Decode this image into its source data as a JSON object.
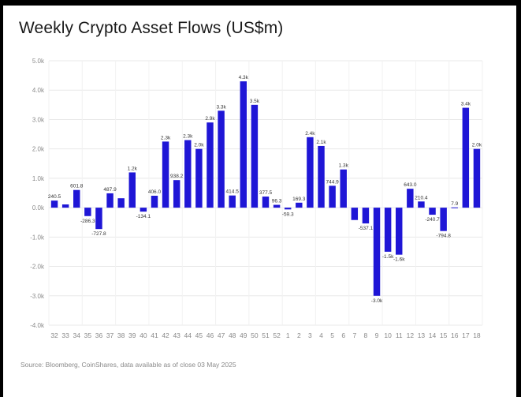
{
  "title": "Weekly Crypto Asset Flows (US$m)",
  "source": "Source: Bloomberg, CoinShares, data available as of close 03 May 2025",
  "colors": {
    "bar": "#1f16d6",
    "grid": "#e8e8e8",
    "tick": "#8a8a8a",
    "label": "#333333"
  },
  "chart_data": {
    "type": "bar",
    "title": "Weekly Crypto Asset Flows (US$m)",
    "xlabel": "",
    "ylabel": "",
    "ylim": [
      -4000,
      5000
    ],
    "yticks": [
      -4000,
      -3000,
      -2000,
      -1000,
      0,
      1000,
      2000,
      3000,
      4000,
      5000
    ],
    "ytick_labels": [
      "-4.0k",
      "-3.0k",
      "-2.0k",
      "-1.0k",
      "0.0k",
      "1.0k",
      "2.0k",
      "3.0k",
      "4.0k",
      "5.0k"
    ],
    "grid": true,
    "legend": "none",
    "categories": [
      "32",
      "33",
      "34",
      "35",
      "36",
      "37",
      "38",
      "39",
      "40",
      "41",
      "42",
      "43",
      "44",
      "45",
      "46",
      "47",
      "48",
      "49",
      "50",
      "51",
      "52",
      "1",
      "2",
      "3",
      "4",
      "5",
      "6",
      "7",
      "8",
      "9",
      "10",
      "11",
      "12",
      "13",
      "14",
      "15",
      "16",
      "17",
      "18"
    ],
    "values": [
      240.5,
      110,
      601.8,
      -286.3,
      -727.8,
      487.9,
      320,
      1200,
      -134.1,
      406,
      2250,
      938.2,
      2300,
      2000,
      2900,
      3300,
      414.5,
      4300,
      3500,
      377.5,
      96.3,
      -59.3,
      169.3,
      2400,
      2100,
      744.9,
      1300,
      -420,
      -537.1,
      -3000,
      -1500,
      -1600,
      643,
      210.4,
      -240.7,
      -794.8,
      7.9,
      3400,
      2000
    ],
    "data_labels": [
      "240.5",
      "",
      "601.8",
      "-286.3",
      "-727.8",
      "487.9",
      "",
      "1.2k",
      "-134.1",
      "406.0",
      "2.3k",
      "938.2",
      "2.3k",
      "2.0k",
      "2.9k",
      "3.3k",
      "414.5",
      "4.3k",
      "3.5k",
      "377.5",
      "96.3",
      "-59.3",
      "169.3",
      "2.4k",
      "2.1k",
      "744.9",
      "1.3k",
      "",
      "-537.1",
      "-3.0k",
      "-1.5k",
      "-1.6k",
      "643.0",
      "210.4",
      "-240.7",
      "-794.8",
      "7.9",
      "3.4k",
      "2.0k"
    ]
  }
}
